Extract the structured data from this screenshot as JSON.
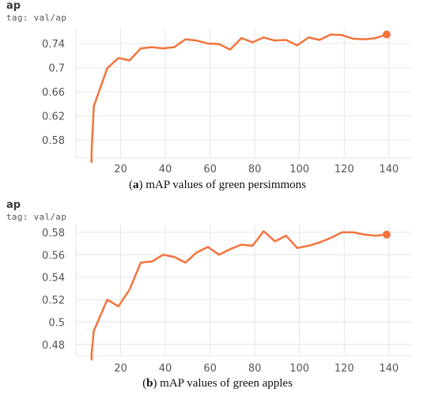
{
  "chart_data": [
    {
      "type": "line",
      "title": "ap",
      "subtitle": "tag: val/ap",
      "caption_label": "a",
      "caption_text": "mAP values of green persimmons",
      "xlim": [
        0,
        150
      ],
      "ylim": [
        0.55,
        0.765
      ],
      "xticks": [
        20,
        40,
        60,
        80,
        100,
        120,
        140
      ],
      "yticks": [
        0.58,
        0.62,
        0.66,
        0.7,
        0.74
      ],
      "ytick_labels": [
        "0.58",
        "0.62",
        "0.66",
        "0.7",
        "0.74"
      ],
      "color": "#f4733c",
      "series": [
        {
          "x": [
            7,
            8,
            14,
            19,
            24,
            29,
            34,
            39,
            44,
            49,
            54,
            59,
            64,
            69,
            74,
            79,
            84,
            89,
            94,
            99,
            104,
            109,
            114,
            119,
            124,
            129,
            134,
            139
          ],
          "y": [
            0.561,
            0.636,
            0.699,
            0.716,
            0.712,
            0.732,
            0.734,
            0.732,
            0.734,
            0.747,
            0.745,
            0.74,
            0.739,
            0.73,
            0.749,
            0.742,
            0.75,
            0.745,
            0.746,
            0.737,
            0.75,
            0.746,
            0.755,
            0.754,
            0.748,
            0.747,
            0.749,
            0.755
          ]
        }
      ]
    },
    {
      "type": "line",
      "title": "ap",
      "subtitle": "tag: val/ap",
      "caption_label": "b",
      "caption_text": "mAP values of green apples",
      "xlim": [
        0,
        150
      ],
      "ylim": [
        0.47,
        0.587
      ],
      "xticks": [
        20,
        40,
        60,
        80,
        100,
        120,
        140
      ],
      "yticks": [
        0.48,
        0.5,
        0.52,
        0.54,
        0.56,
        0.58
      ],
      "ytick_labels": [
        "0.48",
        "0.5",
        "0.52",
        "0.54",
        "0.56",
        "0.58"
      ],
      "color": "#f4733c",
      "series": [
        {
          "x": [
            7,
            8,
            14,
            19,
            24,
            29,
            34,
            39,
            44,
            49,
            54,
            59,
            64,
            69,
            74,
            79,
            84,
            89,
            94,
            99,
            104,
            109,
            114,
            119,
            124,
            129,
            134,
            139
          ],
          "y": [
            0.471,
            0.492,
            0.52,
            0.514,
            0.529,
            0.553,
            0.554,
            0.56,
            0.558,
            0.553,
            0.562,
            0.567,
            0.56,
            0.565,
            0.569,
            0.568,
            0.581,
            0.572,
            0.577,
            0.566,
            0.568,
            0.571,
            0.575,
            0.58,
            0.58,
            0.578,
            0.577,
            0.578
          ]
        }
      ]
    }
  ]
}
